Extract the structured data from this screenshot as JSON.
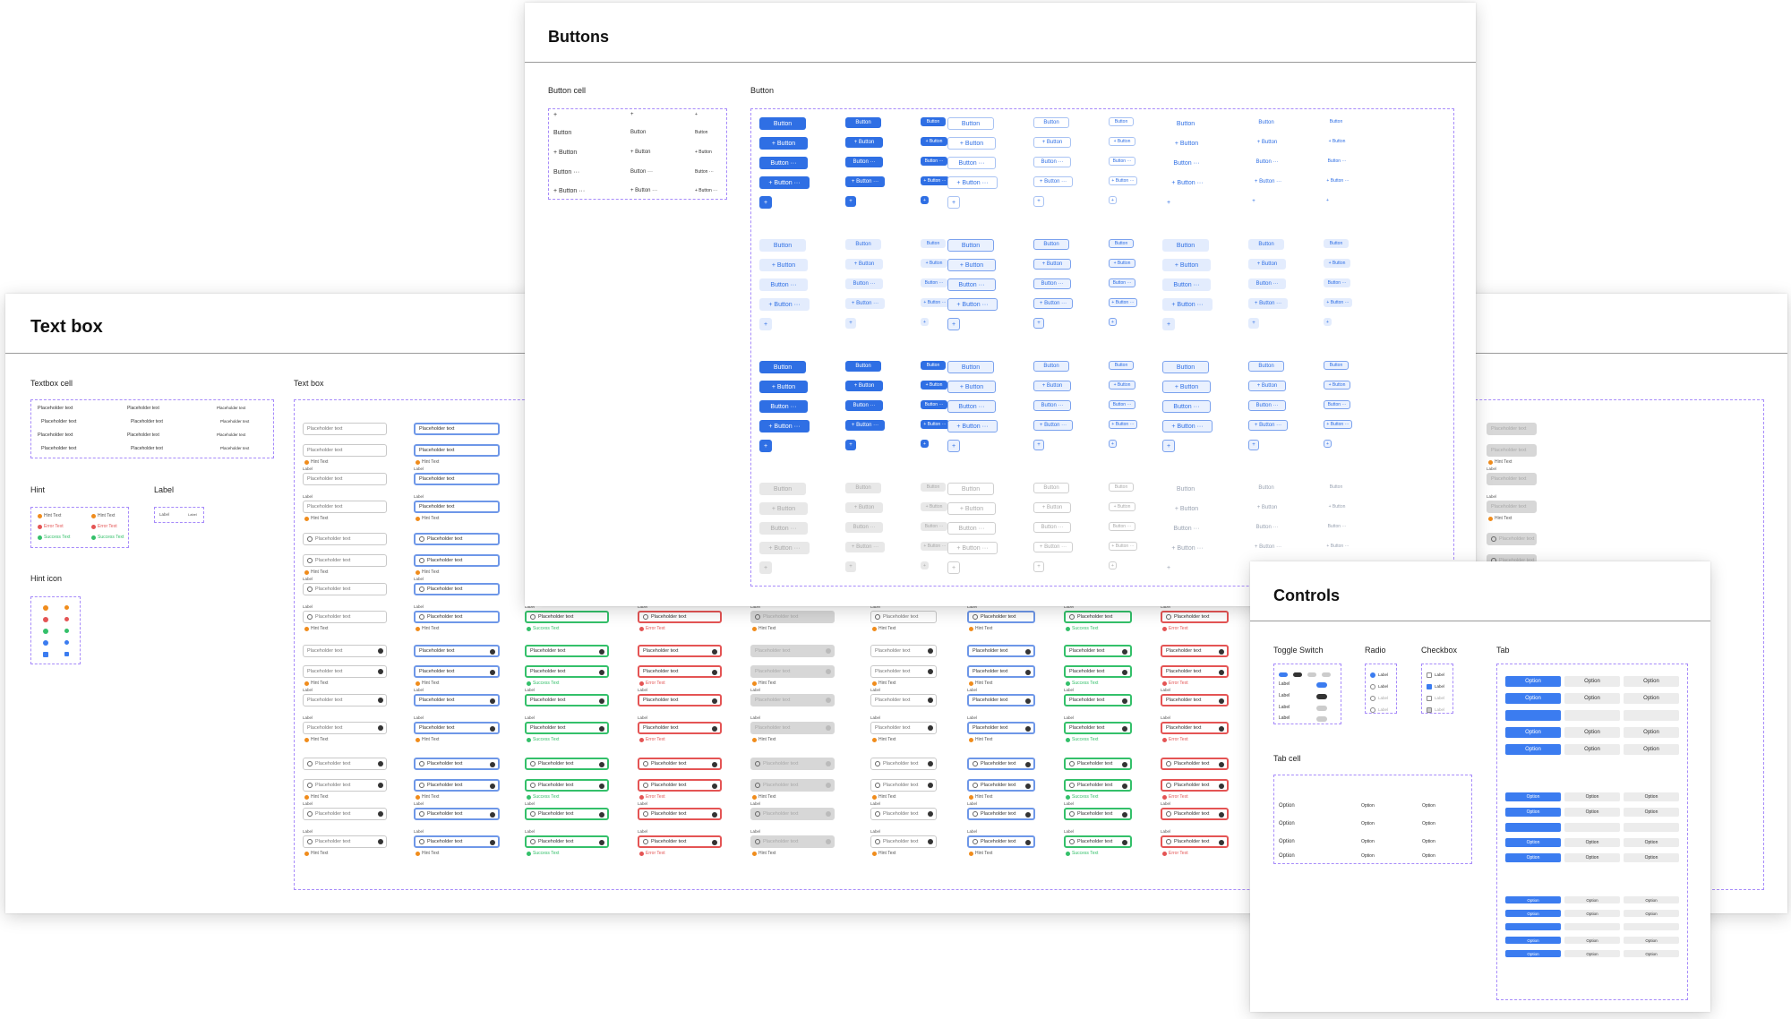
{
  "textbox_board": {
    "title": "Text box",
    "cell_label": "Textbox cell",
    "main_label": "Text box",
    "hint_label": "Hint",
    "label_label": "Label",
    "hint_icon_label": "Hint icon",
    "placeholder": "Placeholder text",
    "label_text": "Label",
    "hint_text": "Hint Text",
    "error_text": "Error Text",
    "success_text": "Success Text"
  },
  "buttons_board": {
    "title": "Buttons",
    "cell_label": "Button cell",
    "main_label": "Button",
    "button_text": "Button",
    "button_more": "Button ···",
    "button_plus": "+ Button",
    "button_plus_more": "+ Button ···",
    "plus": "+"
  },
  "controls_board": {
    "title": "Controls",
    "toggle_label": "Toggle Switch",
    "radio_label": "Radio",
    "checkbox_label": "Checkbox",
    "tab_label": "Tab",
    "tab_cell_label": "Tab cell",
    "option": "Option",
    "label": "Label"
  },
  "colors": {
    "primary": "#2f6fe4",
    "success": "#34c06a",
    "error": "#e45454",
    "warning": "#f08c1c",
    "frame_dash": "#a78bfa"
  }
}
